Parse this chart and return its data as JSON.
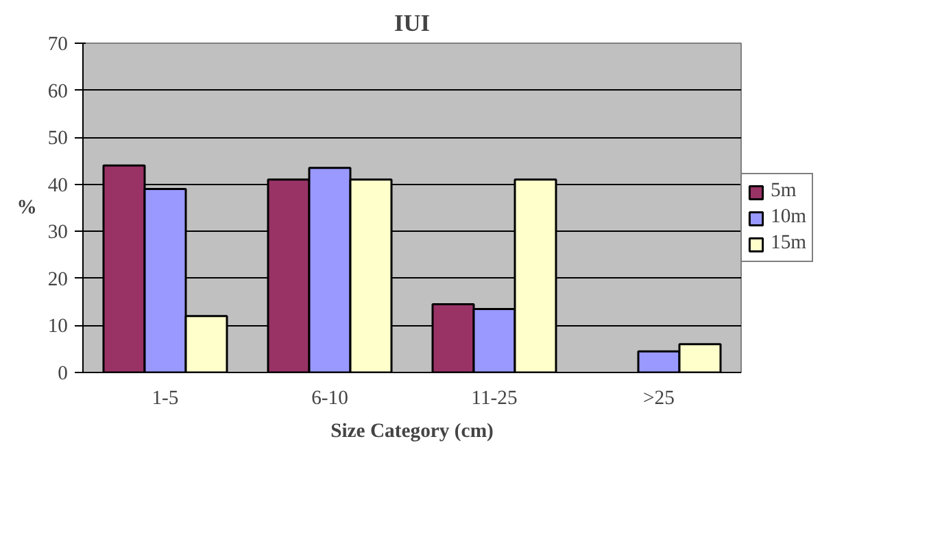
{
  "chart_data": {
    "type": "bar",
    "title": "IUI",
    "xlabel": "Size Category (cm)",
    "ylabel": "%",
    "categories": [
      "1-5",
      "6-10",
      "11-25",
      ">25"
    ],
    "series": [
      {
        "name": "5m",
        "color": "#993366",
        "values": [
          44,
          41,
          14.5,
          null
        ]
      },
      {
        "name": "10m",
        "color": "#9999ff",
        "values": [
          39,
          43.5,
          13.5,
          4.5
        ]
      },
      {
        "name": "15m",
        "color": "#ffffcc",
        "values": [
          12,
          41,
          41,
          6
        ]
      }
    ],
    "ylim": [
      0,
      70
    ],
    "yticks": [
      0,
      10,
      20,
      30,
      40,
      50,
      60,
      70
    ],
    "grid": "y",
    "legend": "right"
  }
}
